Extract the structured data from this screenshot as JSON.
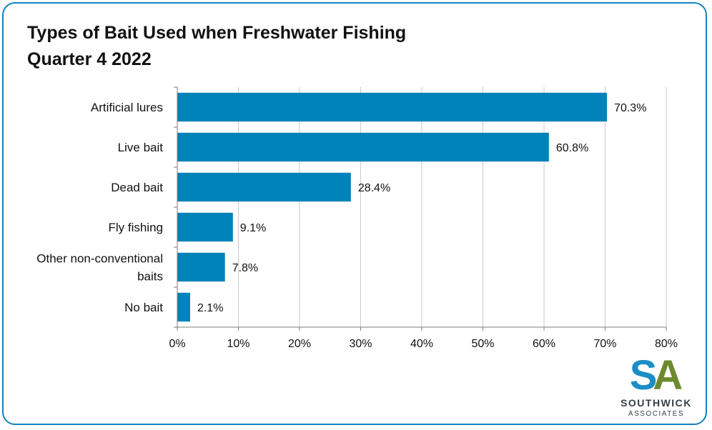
{
  "chart_data": {
    "type": "bar",
    "orientation": "horizontal",
    "title": [
      "Types of Bait Used when Freshwater Fishing",
      "Quarter 4 2022"
    ],
    "categories": [
      [
        "Artificial lures"
      ],
      [
        "Live bait"
      ],
      [
        "Dead bait"
      ],
      [
        "Fly fishing"
      ],
      [
        "Other non-conventional",
        "baits"
      ],
      [
        "No bait"
      ]
    ],
    "values": [
      70.3,
      60.8,
      28.4,
      9.1,
      7.8,
      2.1
    ],
    "data_labels": [
      "70.3%",
      "60.8%",
      "28.4%",
      "9.1%",
      "7.8%",
      "2.1%"
    ],
    "xlim": [
      0,
      80
    ],
    "ticks": [
      0,
      10,
      20,
      30,
      40,
      50,
      60,
      70,
      80
    ],
    "tick_labels": [
      "0%",
      "10%",
      "20%",
      "30%",
      "40%",
      "50%",
      "60%",
      "70%",
      "80%"
    ],
    "grid": true,
    "bar_color": "#0083b8",
    "grid_color": "#c8c8c8"
  },
  "logo": {
    "letters": "SA",
    "line1": "SOUTHWICK",
    "line2": "ASSOCIATES",
    "color_s": "#1c8ec4",
    "color_a": "#6e8a2f"
  },
  "frame_color": "#1282c0"
}
